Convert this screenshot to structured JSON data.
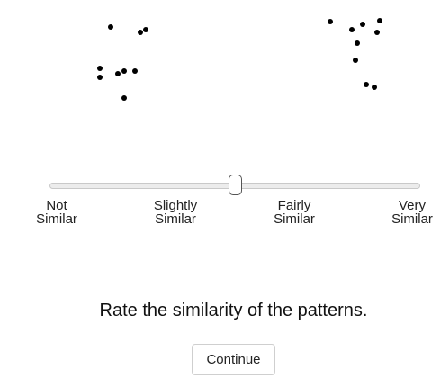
{
  "patterns": {
    "left": [
      [
        123,
        30
      ],
      [
        156,
        36
      ],
      [
        162,
        33
      ],
      [
        111,
        76
      ],
      [
        111,
        86
      ],
      [
        131,
        82
      ],
      [
        138,
        79
      ],
      [
        150,
        79
      ],
      [
        138,
        109
      ]
    ],
    "right": [
      [
        367,
        24
      ],
      [
        391,
        33
      ],
      [
        403,
        27
      ],
      [
        422,
        23
      ],
      [
        419,
        36
      ],
      [
        397,
        48
      ],
      [
        395,
        67
      ],
      [
        407,
        94
      ],
      [
        416,
        97
      ]
    ]
  },
  "slider": {
    "value": 0.5,
    "labels": [
      {
        "line1": "Not",
        "line2": "Similar"
      },
      {
        "line1": "Slightly",
        "line2": "Similar"
      },
      {
        "line1": "Fairly",
        "line2": "Similar"
      },
      {
        "line1": "Very",
        "line2": "Similar"
      }
    ]
  },
  "prompt": "Rate the similarity of the patterns.",
  "continue_label": "Continue"
}
